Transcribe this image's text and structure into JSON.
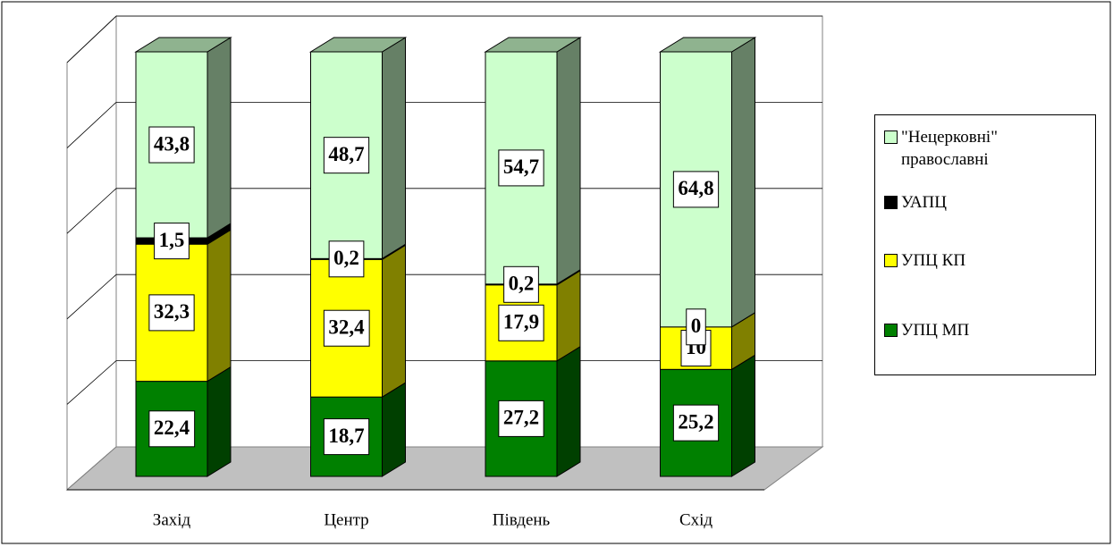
{
  "chart_data": {
    "type": "bar",
    "stacked": true,
    "categories": [
      "Захід",
      "Центр",
      "Південь",
      "Схід"
    ],
    "series": [
      {
        "name": "УПЦ МП",
        "color": "#008000",
        "values": [
          22.4,
          18.7,
          27.2,
          25.2
        ],
        "value_labels": [
          "22,4",
          "18,7",
          "27,2",
          "25,2"
        ]
      },
      {
        "name": "УПЦ КП",
        "color": "#ffff00",
        "values": [
          32.3,
          32.4,
          17.9,
          10
        ],
        "value_labels": [
          "32,3",
          "32,4",
          "17,9",
          "10"
        ]
      },
      {
        "name": "УАПЦ",
        "color": "#000000",
        "values": [
          1.5,
          0.2,
          0.2,
          0
        ],
        "value_labels": [
          "1,5",
          "0,2",
          "0,2",
          "0"
        ]
      },
      {
        "name": "\"Нецерковні\" православні",
        "color": "#ccffcc",
        "values": [
          43.8,
          48.7,
          54.7,
          64.8
        ],
        "value_labels": [
          "43,8",
          "48,7",
          "54,7",
          "64,8"
        ]
      }
    ],
    "ylim": [
      0,
      100
    ],
    "yticks": [
      0,
      20,
      40,
      60,
      80,
      100
    ],
    "grid": true,
    "legend": "right"
  }
}
